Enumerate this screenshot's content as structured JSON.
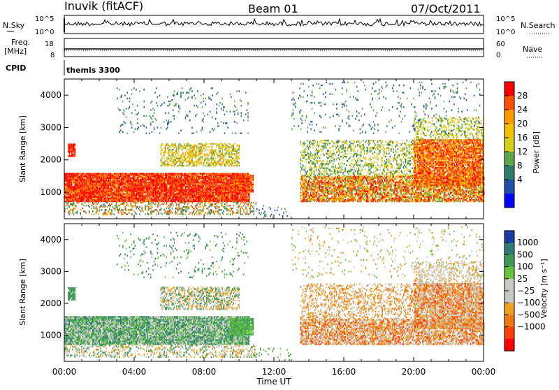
{
  "header": {
    "station": "Inuvik (fitACF)",
    "beam": "Beam 01",
    "date": "07/Oct/2011"
  },
  "sky_panel": {
    "left_label": "N.Sky",
    "right_label": "N.Search",
    "left_ticks": [
      "10^5",
      "10^0"
    ],
    "right_ticks": [
      "10^5",
      "10^0"
    ]
  },
  "freq_panel": {
    "left_label_1": "Freq.",
    "left_label_2": "[MHz]",
    "right_label": "Nave",
    "left_ticks": [
      "18",
      "8"
    ],
    "right_ticks": [
      "60",
      "0"
    ]
  },
  "cpid_panel": {
    "label": "CPID",
    "value": "themis 3300"
  },
  "chart_data": [
    {
      "type": "heatmap",
      "title": "",
      "quantity": "Power",
      "ylabel": "Slant Range [km]",
      "xlabel": "Time UT",
      "ylim": [
        180,
        4500
      ],
      "yticks": [
        "1000",
        "2000",
        "3000",
        "4000"
      ],
      "xticks": [
        "00:00",
        "04:00",
        "08:00",
        "12:00",
        "16:00",
        "20:00",
        "00:00"
      ],
      "colorbar": {
        "label": "Power [dB]",
        "ticks": [
          "28",
          "24",
          "20",
          "16",
          "12",
          "8",
          "4"
        ],
        "colors": [
          "#ff0000",
          "#ff5000",
          "#ff9a00",
          "#f2c200",
          "#d7d020",
          "#5fa84a",
          "#2e7e6a",
          "#1f4fa8",
          "#0000ff"
        ]
      }
    },
    {
      "type": "heatmap",
      "title": "",
      "quantity": "Velocity",
      "ylabel": "Slant Range [km]",
      "xlabel": "Time UT",
      "ylim": [
        180,
        4500
      ],
      "yticks": [
        "1000",
        "2000",
        "3000",
        "4000"
      ],
      "xticks": [
        "00:00",
        "04:00",
        "08:00",
        "12:00",
        "16:00",
        "20:00",
        "00:00"
      ],
      "colorbar": {
        "label": "Velocity [m s⁻¹]",
        "ticks": [
          "1000",
          "500",
          "100",
          "25",
          "−25",
          "−100",
          "−500",
          "−1000"
        ],
        "colors": [
          "#1a3aa8",
          "#2f7d78",
          "#3f9a58",
          "#66c43c",
          "#c8c8c0",
          "#c8c8c0",
          "#f0a020",
          "#f07a10",
          "#ff4000",
          "#ff0000"
        ]
      }
    }
  ],
  "axes": {
    "x_title": "Time UT"
  },
  "style": {
    "grey_groundscatter": "#c8c8c0"
  }
}
